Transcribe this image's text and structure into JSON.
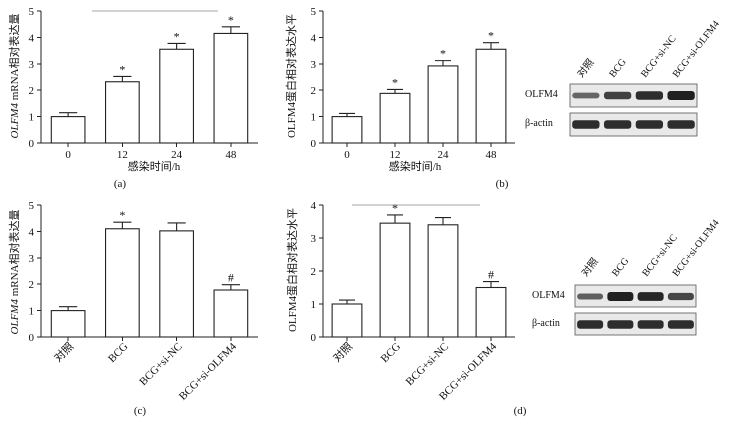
{
  "chart_data": [
    {
      "panel": "(a)",
      "type": "bar",
      "categories": [
        "0",
        "12",
        "24",
        "48"
      ],
      "values": [
        1.0,
        2.32,
        3.55,
        4.15
      ],
      "errors": [
        0.15,
        0.2,
        0.22,
        0.25
      ],
      "significance": [
        "",
        "*",
        "*",
        "*"
      ],
      "xlabel": "感染时间/h",
      "ylabel_italic": "OLFM4",
      "ylabel_rest": " mRNA相对表达量",
      "ylim": [
        0,
        5
      ],
      "yticks": [
        "0",
        "1",
        "2",
        "3",
        "4",
        "5"
      ],
      "grid": false
    },
    {
      "panel": "(b)",
      "type": "bar",
      "categories": [
        "0",
        "12",
        "24",
        "48"
      ],
      "values": [
        1.0,
        1.88,
        2.92,
        3.55
      ],
      "errors": [
        0.12,
        0.15,
        0.2,
        0.25
      ],
      "significance": [
        "",
        "*",
        "*",
        "*"
      ],
      "xlabel": "感染时间/h",
      "ylabel": "OLFM4蛋白相对表达水平",
      "ylim": [
        0,
        5
      ],
      "yticks": [
        "0",
        "1",
        "2",
        "3",
        "4",
        "5"
      ],
      "grid": false
    },
    {
      "panel": "(c)",
      "type": "bar",
      "categories": [
        "对照",
        "BCG",
        "BCG+si-NC",
        "BCG+si-OLFM4"
      ],
      "values": [
        1.0,
        4.1,
        4.02,
        1.78
      ],
      "errors": [
        0.15,
        0.25,
        0.3,
        0.2
      ],
      "significance": [
        "",
        "*",
        "",
        "#"
      ],
      "xlabel": "",
      "ylabel_italic": "OLFM4",
      "ylabel_rest": " mRNA相对表达量",
      "ylim": [
        0,
        5
      ],
      "yticks": [
        "0",
        "1",
        "2",
        "3",
        "4",
        "5"
      ],
      "grid": false
    },
    {
      "panel": "(d)",
      "type": "bar",
      "categories": [
        "对照",
        "BCG",
        "BCG+si-NC",
        "BCG+si-OLFM4"
      ],
      "values": [
        1.0,
        3.45,
        3.4,
        1.5
      ],
      "errors": [
        0.12,
        0.25,
        0.22,
        0.18
      ],
      "significance": [
        "",
        "*",
        "",
        "#"
      ],
      "xlabel": "",
      "ylabel": "OLFM4蛋白相对表达水平",
      "ylim": [
        0,
        4
      ],
      "yticks": [
        "0",
        "1",
        "2",
        "3",
        "4"
      ],
      "grid": false
    }
  ],
  "blots": [
    {
      "lanes": [
        "对照",
        "BCG",
        "BCG+si-NC",
        "BCG+si-OLFM4"
      ],
      "rows": [
        {
          "label": "OLFM4",
          "intensity": [
            0.45,
            0.75,
            0.9,
            1.0
          ]
        },
        {
          "label": "β-actin",
          "intensity": [
            0.9,
            0.9,
            0.9,
            0.9
          ]
        }
      ]
    },
    {
      "lanes": [
        "对照",
        "BCG",
        "BCG+si-NC",
        "BCG+si-OLFM4"
      ],
      "rows": [
        {
          "label": "OLFM4",
          "intensity": [
            0.5,
            1.0,
            0.95,
            0.7
          ]
        },
        {
          "label": "β-actin",
          "intensity": [
            0.9,
            0.9,
            0.9,
            0.9
          ]
        }
      ]
    }
  ],
  "colors": {
    "bar_fill": "#ffffff",
    "stroke": "#222222",
    "band": "#151515"
  }
}
